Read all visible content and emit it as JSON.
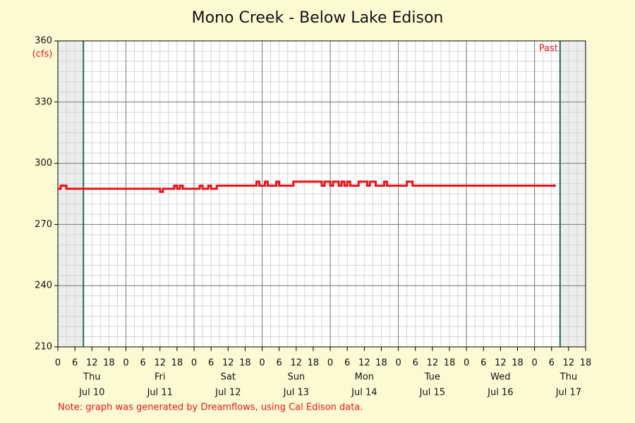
{
  "chart_data": {
    "type": "line",
    "title": "Mono Creek - Below Lake Edison",
    "y_unit": "(cfs)",
    "note": "Note: graph was generated by Dreamflows, using Cal Edison data.",
    "past_label": "Past",
    "now_lines": [
      9,
      177
    ],
    "xlim": [
      0,
      186
    ],
    "ylim": [
      210,
      360
    ],
    "yticks": [
      210,
      240,
      270,
      300,
      330,
      360
    ],
    "xticks": [
      0,
      6,
      12,
      18,
      {
        "value": 24,
        "label": "0"
      },
      {
        "value": 30,
        "label": "6"
      },
      {
        "value": 36,
        "label": "12"
      },
      {
        "value": 42,
        "label": "18"
      },
      {
        "value": 48,
        "label": "0"
      },
      {
        "value": 54,
        "label": "6"
      },
      {
        "value": 60,
        "label": "12"
      },
      {
        "value": 66,
        "label": "18"
      },
      {
        "value": 72,
        "label": "0"
      },
      {
        "value": 78,
        "label": "6"
      },
      {
        "value": 84,
        "label": "12"
      },
      {
        "value": 90,
        "label": "18"
      },
      {
        "value": 96,
        "label": "0"
      },
      {
        "value": 102,
        "label": "6"
      },
      {
        "value": 108,
        "label": "12"
      },
      {
        "value": 114,
        "label": "18"
      },
      {
        "value": 120,
        "label": "0"
      },
      {
        "value": 126,
        "label": "6"
      },
      {
        "value": 132,
        "label": "12"
      },
      {
        "value": 138,
        "label": "18"
      },
      {
        "value": 144,
        "label": "0"
      },
      {
        "value": 150,
        "label": "6"
      },
      {
        "value": 156,
        "label": "12"
      },
      {
        "value": 162,
        "label": "18"
      },
      {
        "value": 168,
        "label": "0"
      },
      {
        "value": 174,
        "label": "6"
      },
      {
        "value": 180,
        "label": "12"
      },
      {
        "value": 186,
        "label": "18"
      }
    ],
    "day_labels": [
      {
        "value": 12,
        "weekday": "Thu",
        "date": "Jul 10"
      },
      {
        "value": 36,
        "weekday": "Fri",
        "date": "Jul 11"
      },
      {
        "value": 60,
        "weekday": "Sat",
        "date": "Jul 12"
      },
      {
        "value": 84,
        "weekday": "Sun",
        "date": "Jul 13"
      },
      {
        "value": 108,
        "weekday": "Mon",
        "date": "Jul 14"
      },
      {
        "value": 132,
        "weekday": "Tue",
        "date": "Jul 15"
      },
      {
        "value": 156,
        "weekday": "Wed",
        "date": "Jul 16"
      },
      {
        "value": 180,
        "weekday": "Thu",
        "date": "Jul 17"
      }
    ],
    "grid": true,
    "major_x_grid": 24,
    "minor_grid": {
      "x": 3,
      "y": 5
    },
    "series": [
      {
        "color": "#e8141a",
        "x": [
          0,
          1,
          1,
          3,
          3,
          36,
          36,
          37,
          37,
          41,
          41,
          42,
          42,
          43,
          43,
          44,
          44,
          50,
          50,
          51,
          51,
          53,
          53,
          54,
          54,
          56,
          56,
          70,
          70,
          71,
          71,
          73,
          73,
          74,
          74,
          77,
          77,
          78,
          78,
          83,
          83,
          93,
          93,
          94,
          94,
          96,
          96,
          97,
          97,
          99,
          99,
          100,
          100,
          101,
          101,
          102,
          102,
          103,
          103,
          106,
          106,
          109,
          109,
          110,
          110,
          112,
          112,
          115,
          115,
          116,
          116,
          123,
          123,
          125,
          125,
          175
        ],
        "values": [
          287.5,
          287.5,
          289,
          289,
          287.5,
          287.5,
          286,
          286,
          287.5,
          287.5,
          289,
          289,
          287.5,
          287.5,
          289,
          289,
          287.5,
          287.5,
          289,
          289,
          287.5,
          287.5,
          289,
          289,
          287.5,
          287.5,
          289,
          289,
          291,
          291,
          289,
          289,
          291,
          291,
          289,
          289,
          291,
          291,
          289,
          289,
          291,
          291,
          289,
          289,
          291,
          291,
          289,
          289,
          291,
          291,
          289,
          289,
          291,
          291,
          289,
          289,
          291,
          291,
          289,
          289,
          291,
          291,
          289,
          289,
          291,
          291,
          289,
          289,
          291,
          291,
          289,
          289,
          291,
          291,
          289,
          289
        ]
      }
    ]
  }
}
